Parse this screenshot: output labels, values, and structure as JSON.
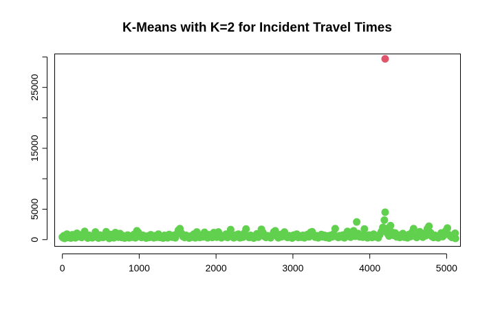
{
  "chart_data": {
    "type": "scatter",
    "title": "K-Means with K=2 for Incident Travel Times",
    "xlabel": "",
    "ylabel": "",
    "xlim": [
      -100,
      5180
    ],
    "ylim": [
      -1100,
      30500
    ],
    "x_ticks": [
      0,
      1000,
      2000,
      3000,
      4000,
      5000
    ],
    "y_ticks": [
      0,
      5000,
      10000,
      15000,
      20000,
      25000,
      30000
    ],
    "y_tick_labels": [
      "0",
      "5000",
      "",
      "15000",
      "",
      "25000",
      ""
    ],
    "grid": false,
    "legend": "none",
    "series": [
      {
        "cluster": 1,
        "color": "#61D04F",
        "points": [
          [
            0,
            420
          ],
          [
            10,
            300
          ],
          [
            20,
            650
          ],
          [
            30,
            200
          ],
          [
            45,
            500
          ],
          [
            60,
            900
          ],
          [
            75,
            350
          ],
          [
            90,
            600
          ],
          [
            110,
            250
          ],
          [
            130,
            800
          ],
          [
            150,
            450
          ],
          [
            170,
            300
          ],
          [
            190,
            1050
          ],
          [
            210,
            500
          ],
          [
            230,
            700
          ],
          [
            250,
            350
          ],
          [
            270,
            900
          ],
          [
            290,
            1350
          ],
          [
            310,
            550
          ],
          [
            330,
            250
          ],
          [
            350,
            700
          ],
          [
            370,
            450
          ],
          [
            390,
            300
          ],
          [
            410,
            600
          ],
          [
            430,
            1250
          ],
          [
            450,
            400
          ],
          [
            470,
            250
          ],
          [
            490,
            750
          ],
          [
            510,
            500
          ],
          [
            530,
            350
          ],
          [
            550,
            650
          ],
          [
            570,
            1300
          ],
          [
            590,
            450
          ],
          [
            610,
            200
          ],
          [
            630,
            850
          ],
          [
            650,
            550
          ],
          [
            670,
            300
          ],
          [
            690,
            1150
          ],
          [
            710,
            600
          ],
          [
            730,
            400
          ],
          [
            750,
            1000
          ],
          [
            770,
            350
          ],
          [
            790,
            650
          ],
          [
            810,
            250
          ],
          [
            830,
            500
          ],
          [
            850,
            750
          ],
          [
            870,
            300
          ],
          [
            890,
            600
          ],
          [
            910,
            400
          ],
          [
            930,
            850
          ],
          [
            950,
            300
          ],
          [
            970,
            1450
          ],
          [
            990,
            1150
          ],
          [
            1010,
            500
          ],
          [
            1030,
            350
          ],
          [
            1050,
            700
          ],
          [
            1070,
            450
          ],
          [
            1090,
            250
          ],
          [
            1110,
            600
          ],
          [
            1130,
            350
          ],
          [
            1150,
            800
          ],
          [
            1170,
            500
          ],
          [
            1190,
            300
          ],
          [
            1210,
            650
          ],
          [
            1230,
            400
          ],
          [
            1250,
            900
          ],
          [
            1270,
            350
          ],
          [
            1290,
            550
          ],
          [
            1310,
            250
          ],
          [
            1330,
            700
          ],
          [
            1350,
            450
          ],
          [
            1370,
            300
          ],
          [
            1390,
            850
          ],
          [
            1410,
            550
          ],
          [
            1430,
            400
          ],
          [
            1450,
            700
          ],
          [
            1470,
            300
          ],
          [
            1490,
            950
          ],
          [
            1510,
            1550
          ],
          [
            1530,
            1800
          ],
          [
            1550,
            1050
          ],
          [
            1570,
            500
          ],
          [
            1590,
            350
          ],
          [
            1610,
            700
          ],
          [
            1630,
            450
          ],
          [
            1650,
            250
          ],
          [
            1670,
            600
          ],
          [
            1690,
            400
          ],
          [
            1710,
            900
          ],
          [
            1730,
            300
          ],
          [
            1750,
            1250
          ],
          [
            1770,
            550
          ],
          [
            1790,
            350
          ],
          [
            1810,
            700
          ],
          [
            1830,
            450
          ],
          [
            1850,
            1200
          ],
          [
            1870,
            550
          ],
          [
            1890,
            300
          ],
          [
            1910,
            800
          ],
          [
            1930,
            500
          ],
          [
            1950,
            350
          ],
          [
            1970,
            1150
          ],
          [
            1990,
            600
          ],
          [
            2010,
            400
          ],
          [
            2030,
            1250
          ],
          [
            2050,
            450
          ],
          [
            2070,
            300
          ],
          [
            2090,
            650
          ],
          [
            2110,
            500
          ],
          [
            2130,
            900
          ],
          [
            2150,
            350
          ],
          [
            2170,
            650
          ],
          [
            2190,
            1650
          ],
          [
            2210,
            500
          ],
          [
            2230,
            300
          ],
          [
            2250,
            750
          ],
          [
            2270,
            450
          ],
          [
            2290,
            900
          ],
          [
            2310,
            300
          ],
          [
            2330,
            600
          ],
          [
            2350,
            400
          ],
          [
            2370,
            1100
          ],
          [
            2390,
            1750
          ],
          [
            2410,
            550
          ],
          [
            2430,
            350
          ],
          [
            2450,
            700
          ],
          [
            2470,
            450
          ],
          [
            2490,
            250
          ],
          [
            2510,
            600
          ],
          [
            2530,
            950
          ],
          [
            2550,
            400
          ],
          [
            2570,
            700
          ],
          [
            2590,
            1700
          ],
          [
            2610,
            1150
          ],
          [
            2630,
            500
          ],
          [
            2650,
            350
          ],
          [
            2670,
            650
          ],
          [
            2690,
            450
          ],
          [
            2710,
            300
          ],
          [
            2730,
            700
          ],
          [
            2750,
            1250
          ],
          [
            2770,
            1450
          ],
          [
            2790,
            600
          ],
          [
            2810,
            300
          ],
          [
            2830,
            800
          ],
          [
            2850,
            450
          ],
          [
            2870,
            1000
          ],
          [
            2890,
            1250
          ],
          [
            2910,
            500
          ],
          [
            2930,
            350
          ],
          [
            2950,
            650
          ],
          [
            2970,
            400
          ],
          [
            2990,
            250
          ],
          [
            3010,
            750
          ],
          [
            3030,
            500
          ],
          [
            3050,
            900
          ],
          [
            3070,
            350
          ],
          [
            3090,
            600
          ],
          [
            3110,
            400
          ],
          [
            3130,
            700
          ],
          [
            3150,
            300
          ],
          [
            3170,
            550
          ],
          [
            3190,
            850
          ],
          [
            3210,
            450
          ],
          [
            3230,
            1200
          ],
          [
            3250,
            1300
          ],
          [
            3270,
            750
          ],
          [
            3290,
            400
          ],
          [
            3310,
            650
          ],
          [
            3330,
            300
          ],
          [
            3350,
            550
          ],
          [
            3370,
            850
          ],
          [
            3390,
            450
          ],
          [
            3410,
            700
          ],
          [
            3430,
            350
          ],
          [
            3450,
            600
          ],
          [
            3470,
            250
          ],
          [
            3490,
            700
          ],
          [
            3510,
            450
          ],
          [
            3530,
            950
          ],
          [
            3550,
            1800
          ],
          [
            3570,
            500
          ],
          [
            3590,
            350
          ],
          [
            3610,
            650
          ],
          [
            3630,
            450
          ],
          [
            3650,
            750
          ],
          [
            3670,
            300
          ],
          [
            3690,
            900
          ],
          [
            3710,
            1350
          ],
          [
            3730,
            550
          ],
          [
            3750,
            400
          ],
          [
            3770,
            700
          ],
          [
            3790,
            1450
          ],
          [
            3810,
            550
          ],
          [
            3830,
            2900
          ],
          [
            3850,
            1000
          ],
          [
            3870,
            450
          ],
          [
            3890,
            700
          ],
          [
            3910,
            400
          ],
          [
            3930,
            1750
          ],
          [
            3950,
            600
          ],
          [
            3970,
            300
          ],
          [
            3990,
            750
          ],
          [
            4010,
            500
          ],
          [
            4030,
            350
          ],
          [
            4050,
            900
          ],
          [
            4070,
            450
          ],
          [
            4090,
            650
          ],
          [
            4110,
            300
          ],
          [
            4130,
            800
          ],
          [
            4150,
            1300
          ],
          [
            4170,
            2000
          ],
          [
            4190,
            3200
          ],
          [
            4200,
            4500
          ],
          [
            4210,
            1800
          ],
          [
            4230,
            1000
          ],
          [
            4250,
            600
          ],
          [
            4270,
            2300
          ],
          [
            4290,
            1200
          ],
          [
            4310,
            700
          ],
          [
            4330,
            1100
          ],
          [
            4350,
            450
          ],
          [
            4370,
            750
          ],
          [
            4390,
            350
          ],
          [
            4410,
            600
          ],
          [
            4430,
            1000
          ],
          [
            4450,
            400
          ],
          [
            4470,
            700
          ],
          [
            4490,
            300
          ],
          [
            4510,
            850
          ],
          [
            4530,
            500
          ],
          [
            4550,
            1200
          ],
          [
            4570,
            1800
          ],
          [
            4590,
            550
          ],
          [
            4610,
            350
          ],
          [
            4630,
            700
          ],
          [
            4650,
            1300
          ],
          [
            4670,
            600
          ],
          [
            4690,
            400
          ],
          [
            4710,
            1050
          ],
          [
            4730,
            650
          ],
          [
            4750,
            1800
          ],
          [
            4770,
            2200
          ],
          [
            4790,
            1150
          ],
          [
            4810,
            500
          ],
          [
            4830,
            350
          ],
          [
            4850,
            700
          ],
          [
            4870,
            450
          ],
          [
            4890,
            300
          ],
          [
            4910,
            650
          ],
          [
            4930,
            1100
          ],
          [
            4950,
            500
          ],
          [
            4970,
            900
          ],
          [
            4990,
            1450
          ],
          [
            5010,
            1900
          ],
          [
            5030,
            800
          ],
          [
            5050,
            550
          ],
          [
            5070,
            350
          ],
          [
            5090,
            650
          ],
          [
            5110,
            1050
          ],
          [
            5115,
            200
          ]
        ]
      },
      {
        "cluster": 2,
        "color": "#DF536B",
        "points": [
          [
            4200,
            29700
          ]
        ]
      }
    ]
  }
}
